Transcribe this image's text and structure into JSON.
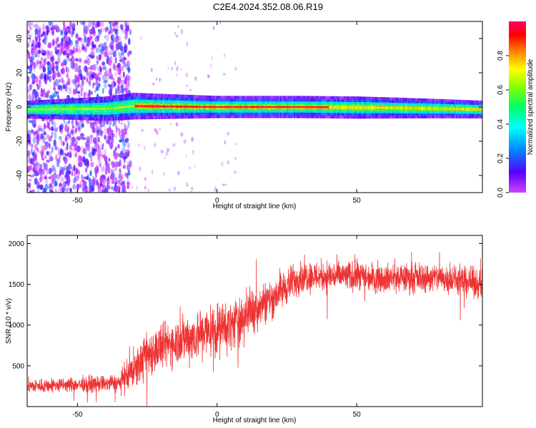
{
  "title": "C2E4.2024.352.08.06.R19",
  "colors": {
    "spectrogram_low": "#8d5bd8",
    "spectrogram_core": "#3cc8e8",
    "snr_line": "#ee3333"
  },
  "chart_data": [
    {
      "type": "heatmap",
      "xlabel": "Height of straight line (km)",
      "ylabel": "Frequency (Hz)",
      "xlim": [
        -68,
        95
      ],
      "ylim": [
        -50,
        50
      ],
      "x_ticks": [
        -50,
        0,
        50
      ],
      "y_ticks": [
        -40,
        -20,
        0,
        20,
        40
      ],
      "colorbar": {
        "label": "Normalized spectral amplitude",
        "range": [
          0.0,
          1.0
        ],
        "ticks": [
          0.0,
          0.2,
          0.4,
          0.6,
          0.8
        ],
        "tick_labels": [
          "0.0",
          "0.2",
          "0.4",
          "0.6",
          "0.8"
        ],
        "colormap": [
          "#cc44ff",
          "#5500ff",
          "#0088ff",
          "#00ffff",
          "#00ff66",
          "#88ff00",
          "#ffff00",
          "#ff8800",
          "#ff0000",
          "#ff0066"
        ]
      },
      "noise_region_x": [
        -68,
        -33
      ],
      "signal_center_freq_hz": [
        [
          -68,
          -1.5
        ],
        [
          -40,
          -1.0
        ],
        [
          -30,
          0.5
        ],
        [
          0,
          0.0
        ],
        [
          30,
          0.0
        ],
        [
          60,
          -0.5
        ],
        [
          80,
          -1.0
        ],
        [
          95,
          -1.5
        ]
      ],
      "signal_halfwidth_hz": [
        [
          -68,
          2.0
        ],
        [
          -30,
          3.0
        ],
        [
          0,
          2.5
        ],
        [
          50,
          2.5
        ],
        [
          95,
          2.0
        ]
      ],
      "grid": false
    },
    {
      "type": "line",
      "xlabel": "Height of straight line (km)",
      "ylabel": "SNR (10 * v/v)",
      "xlim": [
        -68,
        95
      ],
      "ylim": [
        0,
        2100
      ],
      "x_ticks": [
        -50,
        0,
        50
      ],
      "y_ticks": [
        500,
        1000,
        1500,
        2000
      ],
      "series": [
        {
          "envelope_x": [
            -68,
            -50,
            -35,
            -30,
            -25,
            -15,
            -5,
            5,
            20,
            30,
            45,
            60,
            80,
            95
          ],
          "envelope_mean": [
            250,
            270,
            290,
            420,
            650,
            800,
            900,
            1000,
            1350,
            1600,
            1600,
            1580,
            1580,
            1500
          ],
          "envelope_amp": [
            80,
            80,
            100,
            200,
            250,
            250,
            300,
            280,
            220,
            180,
            170,
            160,
            160,
            160
          ]
        }
      ],
      "grid": false
    }
  ]
}
